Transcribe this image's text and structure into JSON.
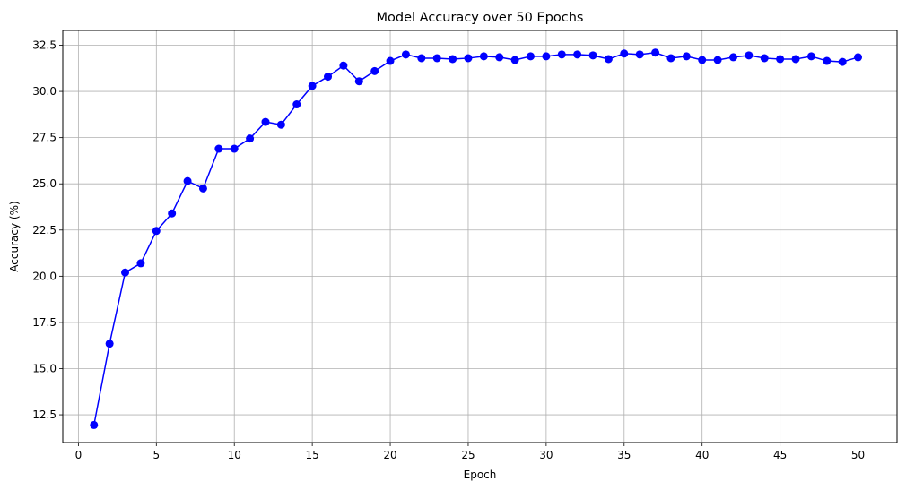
{
  "chart_data": {
    "type": "line",
    "title": "Model Accuracy over 50 Epochs",
    "xlabel": "Epoch",
    "ylabel": "Accuracy (%)",
    "xlim": [
      -1,
      52.5
    ],
    "ylim": [
      11.0,
      33.3
    ],
    "xticks": [
      0,
      5,
      10,
      15,
      20,
      25,
      30,
      35,
      40,
      45,
      50
    ],
    "yticks": [
      12.5,
      15.0,
      17.5,
      20.0,
      22.5,
      25.0,
      27.5,
      30.0,
      32.5
    ],
    "grid": true,
    "color": "#0000ff",
    "marker": "circle",
    "series": [
      {
        "x": [
          1,
          2,
          3,
          4,
          5,
          6,
          7,
          8,
          9,
          10,
          11,
          12,
          13,
          14,
          15,
          16,
          17,
          18,
          19,
          20,
          21,
          22,
          23,
          24,
          25,
          26,
          27,
          28,
          29,
          30,
          31,
          32,
          33,
          34,
          35,
          36,
          37,
          38,
          39,
          40,
          41,
          42,
          43,
          44,
          45,
          46,
          47,
          48,
          49,
          50
        ],
        "values": [
          11.95,
          16.35,
          20.2,
          20.7,
          22.45,
          23.4,
          25.15,
          24.75,
          26.9,
          26.9,
          27.45,
          28.35,
          28.2,
          29.3,
          30.3,
          30.8,
          31.4,
          30.55,
          31.1,
          31.65,
          32.0,
          31.8,
          31.8,
          31.75,
          31.8,
          31.9,
          31.85,
          31.7,
          31.9,
          31.9,
          32.0,
          32.0,
          31.95,
          31.75,
          32.05,
          32.0,
          32.1,
          31.8,
          31.9,
          31.7,
          31.7,
          31.85,
          31.95,
          31.8,
          31.75,
          31.75,
          31.9,
          31.65,
          31.6,
          31.85
        ]
      }
    ]
  }
}
